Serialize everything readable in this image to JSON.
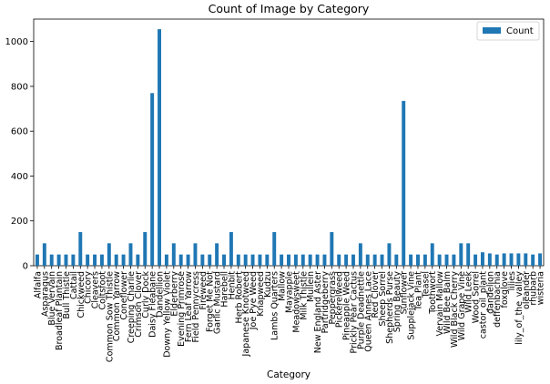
{
  "chart_data": {
    "type": "bar",
    "title": "Count of Image by Category",
    "xlabel": "Category",
    "ylabel": "",
    "ylim": [
      0,
      1100
    ],
    "yticks": [
      0,
      200,
      400,
      600,
      800,
      1000
    ],
    "grid": false,
    "legend_position": "top-right",
    "bar_color": "#1f77b4",
    "categories": [
      "Alfalfa",
      "Asparagus",
      "Blue Vervain",
      "Broadleaf Plantain",
      "Bull Thistle",
      "Cattail",
      "Chickweed",
      "Chicory",
      "Cleavers",
      "Coltsfoot",
      "Common Sow Thistle",
      "Common Yarrow",
      "Coneflower",
      "Creeping Charlie",
      "Crimson Clover",
      "Curly Dock",
      "Daisy Fleabane",
      "Dandellion",
      "Downy Yellow Violet",
      "Elderberry",
      "Evening Primrose",
      "Fern Leaf Yarrow",
      "Field Pennycress",
      "Fireweed",
      "Forget Me Not",
      "Garlic Mustard",
      "Harebell",
      "Henbit",
      "Herb Robert",
      "Japanese Knotweed",
      "Joe Pye Weed",
      "Knapweed",
      "Kudzu",
      "Lambs Quarters",
      "Mallow",
      "Mayapple",
      "Meadowsweet",
      "Milk Thistle",
      "Mullein",
      "New England Aster",
      "Partridgeberry",
      "Peppergrass",
      "Pickerelweed",
      "Pineapple Weed",
      "Prickly Pear Cactus",
      "Purple Deadnettle",
      "Queen Annes Lace",
      "Red Clover",
      "Sheep Sorrel",
      "Shepherds Purse",
      "Spring Beauty",
      "Sunflower",
      "Supplejack Vine",
      "Tea Plant",
      "Teasel",
      "Toothwort",
      "Vervain Mallow",
      "Wild Bee Balm",
      "Wild Black Cherry",
      "Wild Grape Vine",
      "Wild Leek",
      "Wood Sorrel",
      "castor_oil_plant",
      "dandelion",
      "deffenbachia",
      "foxglove",
      "lilies",
      "lily_of_the_valley",
      "oleander",
      "rhubarb",
      "wisteria"
    ],
    "series": [
      {
        "name": "Count",
        "values": [
          50,
          100,
          50,
          50,
          50,
          50,
          150,
          50,
          50,
          50,
          100,
          50,
          50,
          100,
          50,
          150,
          770,
          1055,
          50,
          100,
          50,
          50,
          100,
          50,
          50,
          100,
          50,
          150,
          50,
          50,
          50,
          50,
          50,
          150,
          50,
          50,
          50,
          50,
          50,
          50,
          50,
          150,
          50,
          50,
          50,
          100,
          50,
          50,
          50,
          100,
          50,
          735,
          50,
          50,
          50,
          100,
          50,
          50,
          50,
          100,
          100,
          50,
          60,
          55,
          50,
          55,
          55,
          55,
          55,
          50,
          55
        ]
      }
    ]
  }
}
